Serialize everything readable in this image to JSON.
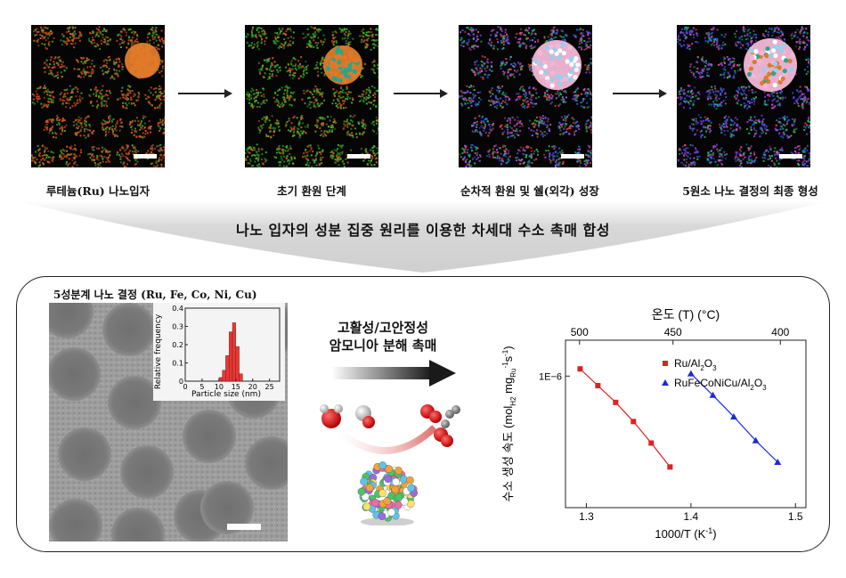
{
  "stages": [
    {
      "caption": "루테늄(Ru) 나노입자",
      "palette": [
        "#e0561f",
        "#d94c17",
        "#3fae2c"
      ]
    },
    {
      "caption": "초기 환원 단계",
      "palette": [
        "#3fbf2a",
        "#2e9f24",
        "#e0561f"
      ]
    },
    {
      "caption": "순차적 환원 및 쉘(외각) 성장",
      "palette": [
        "#2563eb",
        "#22c55e",
        "#ef4444",
        "#a855f7"
      ]
    },
    {
      "caption": "5원소 나노 결정의 최종 형성",
      "palette": [
        "#7c3aed",
        "#2563eb",
        "#ec4899",
        "#22c55e"
      ]
    }
  ],
  "main_title": "나노 입자의 성분 집중 원리를 이용한 차세대 수소 촉매 합성",
  "tem_title": "5성분계 나노 결정 (Ru, Fe, Co, Ni, Cu)",
  "middle_label": {
    "line1": "고활성/고안정성",
    "line2": "암모니아 분해 촉매"
  },
  "inset_chart": {
    "ylabel": "Relative frequency",
    "xlabel": "Particle size (nm)",
    "x_ticks": [
      "0",
      "5",
      "10",
      "15",
      "20",
      "25"
    ],
    "y_ticks": [
      "0",
      "0.1",
      "0.2",
      "0.3",
      "0.4"
    ]
  },
  "chart_data": [
    {
      "type": "bar",
      "xlabel": "Particle size (nm)",
      "ylabel": "Relative frequency",
      "xlim": [
        0,
        28
      ],
      "ylim": [
        0,
        0.4
      ],
      "bin_width": 1,
      "bins": [
        10.5,
        11.5,
        12.5,
        13.5,
        14.5,
        15.5,
        16.5
      ],
      "values": [
        0.02,
        0.06,
        0.14,
        0.27,
        0.32,
        0.19,
        0.04
      ],
      "color": "#e53935"
    },
    {
      "type": "line",
      "xlabel": "1000/T (K",
      "xlabel_sup": "-1",
      "xlabel_tail": ")",
      "ylabel": "수소 생성 속도 (mol",
      "ylabel_parts": [
        "H2",
        " mg",
        "Ru",
        "-1",
        "s",
        "-1"
      ],
      "top_xlabel": "온도 (T) (°C)",
      "top_ticks": [
        "500",
        "450",
        "400"
      ],
      "top_tick_values_C": [
        500,
        450,
        400
      ],
      "x_ticks": [
        "1.3",
        "1.4",
        "1.5"
      ],
      "y_tick_label": "1E−6",
      "xlim": [
        1.28,
        1.51
      ],
      "ylim_log": [
        -6.55,
        -5.85
      ],
      "series": [
        {
          "name": "Ru/Al2O3",
          "label_base": "Ru/Al",
          "label_sub1": "2",
          "label_mid": "O",
          "label_sub2": "3",
          "color": "#e02020",
          "marker": "square",
          "x": [
            1.294,
            1.311,
            1.328,
            1.345,
            1.362,
            1.38
          ],
          "log10_y": [
            -5.97,
            -6.04,
            -6.11,
            -6.19,
            -6.28,
            -6.38
          ]
        },
        {
          "name": "RuFeCoNiCu/Al2O3",
          "label_base": "RuFeCoNiCu/Al",
          "label_sub1": "2",
          "label_mid": "O",
          "label_sub2": "3",
          "color": "#1c2bd6",
          "marker": "triangle",
          "x": [
            1.4,
            1.421,
            1.441,
            1.462,
            1.483
          ],
          "log10_y": [
            -5.99,
            -6.08,
            -6.17,
            -6.27,
            -6.36
          ]
        }
      ]
    }
  ]
}
